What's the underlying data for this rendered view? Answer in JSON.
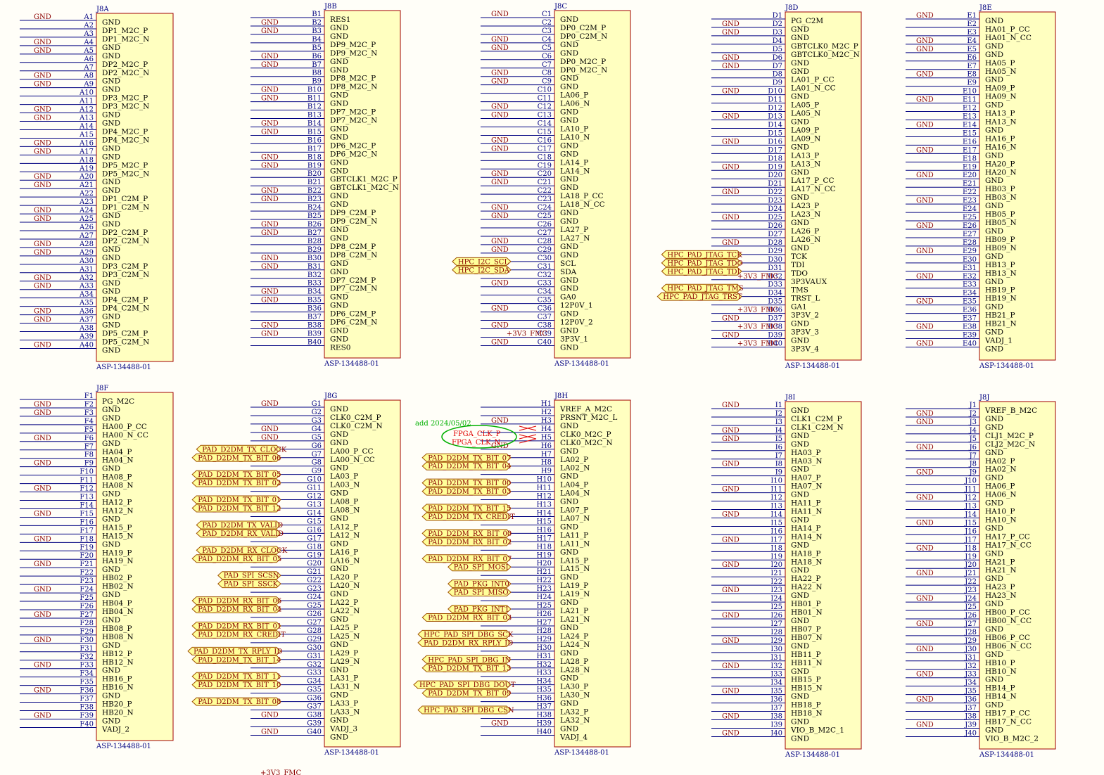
{
  "colors": {
    "wire": "#000080",
    "body_fill": "#ffffc0",
    "body_stroke": "#a00000",
    "gnd_text": "#8b0000",
    "port_fill": "#ffff99",
    "port_stroke": "#a05000",
    "note": "#00b000",
    "clk": "#e00000"
  },
  "gnd_label": "GND",
  "note": "add 2024/05/02",
  "bottom_label": "+3V3_FMC",
  "clk_labels": [
    "FPGA_CLK_P",
    "FPGA_CLK_N"
  ],
  "part": "ASP-134488-01",
  "top": [
    {
      "ref": "J8A",
      "prefix": "A",
      "gnd": [
        1,
        4,
        5,
        8,
        9,
        12,
        13,
        16,
        17,
        20,
        21,
        24,
        25,
        28,
        29,
        32,
        33,
        36,
        37,
        40
      ],
      "ext": {},
      "sigs": [
        "GND",
        "DP1_M2C_P",
        "DP1_M2C_N",
        "GND",
        "GND",
        "DP2_M2C_P",
        "DP2_M2C_N",
        "GND",
        "GND",
        "DP3_M2C_P",
        "DP3_M2C_N",
        "GND",
        "GND",
        "DP4_M2C_P",
        "DP4_M2C_N",
        "GND",
        "GND",
        "DP5_M2C_P",
        "DP5_M2C_N",
        "GND",
        "GND",
        "DP1_C2M_P",
        "DP1_C2M_N",
        "GND",
        "GND",
        "DP2_C2M_P",
        "DP2_C2M_N",
        "GND",
        "GND",
        "DP3_C2M_P",
        "DP3_C2M_N",
        "GND",
        "GND",
        "DP4_C2M_P",
        "DP4_C2M_N",
        "GND",
        "GND",
        "DP5_C2M_P",
        "DP5_C2M_N",
        "GND"
      ]
    },
    {
      "ref": "J8B",
      "prefix": "B",
      "gnd": [
        2,
        3,
        6,
        7,
        10,
        11,
        14,
        15,
        18,
        19,
        22,
        23,
        26,
        27,
        30,
        31,
        34,
        35,
        38,
        39
      ],
      "ext": {},
      "sigs": [
        "RES1",
        "GND",
        "GND",
        "DP9_M2C_P",
        "DP9_M2C_N",
        "GND",
        "GND",
        "DP8_M2C_P",
        "DP8_M2C_N",
        "GND",
        "GND",
        "DP7_M2C_P",
        "DP7_M2C_N",
        "GND",
        "GND",
        "DP6_M2C_P",
        "DP6_M2C_N",
        "GND",
        "GND",
        "GBTCLK1_M2C_P",
        "GBTCLK1_M2C_N",
        "GND",
        "GND",
        "DP9_C2M_P",
        "DP9_C2M_N",
        "GND",
        "GND",
        "DP8_C2M_P",
        "DP8_C2M_N",
        "GND",
        "GND",
        "DP7_C2M_P",
        "DP7_C2M_N",
        "GND",
        "GND",
        "DP6_C2M_P",
        "DP6_C2M_N",
        "GND",
        "GND",
        "RES0"
      ]
    },
    {
      "ref": "J8C",
      "prefix": "C",
      "gnd": [
        1,
        4,
        5,
        8,
        9,
        12,
        13,
        16,
        17,
        20,
        21,
        24,
        25,
        28,
        29,
        33,
        36,
        38,
        40
      ],
      "ext": {
        "30": "HPC_I2C_SCL",
        "31": "HPC_I2C_SDA",
        "39": "+3V3_FMC"
      },
      "sigs": [
        "GND",
        "DP0_C2M_P",
        "DP0_C2M_N",
        "GND",
        "GND",
        "DP0_M2C_P",
        "DP0_M2C_N",
        "GND",
        "GND",
        "LA06_P",
        "LA06_N",
        "GND",
        "GND",
        "LA10_P",
        "LA10_N",
        "GND",
        "GND",
        "LA14_P",
        "LA14_N",
        "GND",
        "GND",
        "LA18_P_CC",
        "LA18_N_CC",
        "GND",
        "GND",
        "LA27_P",
        "LA27_N",
        "GND",
        "GND",
        "SCL",
        "SDA",
        "GND",
        "GND",
        "GA0",
        "12P0V_1",
        "GND",
        "12P0V_2",
        "GND",
        "3P3V_1",
        "GND"
      ]
    },
    {
      "ref": "J8D",
      "prefix": "D",
      "gnd": [
        2,
        3,
        6,
        7,
        10,
        13,
        16,
        19,
        22,
        25,
        28,
        37,
        39
      ],
      "ext": {
        "29": "HPC_PAD_JTAG_TCK",
        "30": "HPC_PAD_JTAG_TDO",
        "31": "HPC_PAD_JTAG_TDI",
        "32": "+3V3_FMC",
        "33": "HPC_PAD_JTAG_TMS",
        "34": "HPC_PAD_JTAG_TRST",
        "36": "+3V3_FMC",
        "38": "+3V3_FMC",
        "40": "+3V3_FMC"
      },
      "sigs": [
        "PG_C2M",
        "GND",
        "GND",
        "GBTCLK0_M2C_P",
        "GBTCLK0_M2C_N",
        "GND",
        "GND",
        "LA01_P_CC",
        "LA01_N_CC",
        "GND",
        "LA05_P",
        "LA05_N",
        "GND",
        "LA09_P",
        "LA09_N",
        "GND",
        "LA13_P",
        "LA13_N",
        "GND",
        "LA17_P_CC",
        "LA17_N_CC",
        "GND",
        "LA23_P",
        "LA23_N",
        "GND",
        "LA26_P",
        "LA26_N",
        "GND",
        "TCK",
        "TDI",
        "TDO",
        "3P3VAUX",
        "TMS",
        "TRST_L",
        "GA1",
        "3P3V_2",
        "GND",
        "3P3V_3",
        "GND",
        "3P3V_4"
      ]
    },
    {
      "ref": "J8E",
      "prefix": "E",
      "gnd": [
        1,
        4,
        5,
        8,
        11,
        14,
        17,
        20,
        23,
        26,
        29,
        32,
        35,
        38,
        40
      ],
      "ext": {},
      "sigs": [
        "GND",
        "HA01_P_CC",
        "HA01_N_CC",
        "GND",
        "GND",
        "HA05_P",
        "HA05_N",
        "GND",
        "HA09_P",
        "HA09_N",
        "GND",
        "HA13_P",
        "HA13_N",
        "GND",
        "HA16_P",
        "HA16_N",
        "GND",
        "HA20_P",
        "HA20_N",
        "GND",
        "HB03_P",
        "HB03_N",
        "GND",
        "HB05_P",
        "HB05_N",
        "GND",
        "HB09_P",
        "HB09_N",
        "GND",
        "HB13_P",
        "HB13_N",
        "GND",
        "HB19_P",
        "HB19_N",
        "GND",
        "HB21_P",
        "HB21_N",
        "GND",
        "VADJ_1",
        "GND"
      ]
    }
  ],
  "bottom": [
    {
      "ref": "J8F",
      "prefix": "F",
      "gnd": [
        2,
        3,
        6,
        9,
        12,
        15,
        18,
        21,
        24,
        27,
        30,
        33,
        36,
        39
      ],
      "ext": {},
      "sigs": [
        "PG_M2C",
        "GND",
        "GND",
        "HA00_P_CC",
        "HA00_N_CC",
        "GND",
        "HA04_P",
        "HA04_N",
        "GND",
        "HA08_P",
        "HA08_N",
        "GND",
        "HA12_P",
        "HA12_N",
        "GND",
        "HA15_P",
        "HA15_N",
        "GND",
        "HA19_P",
        "HA19_N",
        "GND",
        "HB02_P",
        "HB02_N",
        "GND",
        "HB04_P",
        "HB04_N",
        "GND",
        "HB08_P",
        "HB08_N",
        "GND",
        "HB12_P",
        "HB12_N",
        "GND",
        "HB16_P",
        "HB16_N",
        "GND",
        "HB20_P",
        "HB20_N",
        "GND",
        "VADJ_2"
      ]
    },
    {
      "ref": "J8G",
      "prefix": "G",
      "gnd": [
        1,
        4,
        5,
        38,
        40
      ],
      "ext": {
        "6": "PAD_D2DM_TX_CLOCK",
        "7": "PAD_D2DM_TX_BIT_06",
        "9": "PAD_D2DM_TX_BIT_05",
        "10": "PAD_D2DM_TX_BIT_02",
        "12": "PAD_D2DM_TX_BIT_01",
        "13": "PAD_D2DM_TX_BIT_12",
        "15": "PAD_D2DM_TX_VALID",
        "16": "PAD_D2DM_RX_VALID",
        "18": "PAD_D2DM_RX_CLOCK",
        "19": "PAD_D2DM_RX_BIT_05",
        "21": "PAD_SPI_SCSN",
        "22": "PAD_SPI_SSCK",
        "24": "PAD_D2DM_RX_BIT_06",
        "25": "PAD_D2DM_RX_BIT_04",
        "27": "PAD_D2DM_RX_BIT_01",
        "28": "PAD_D2DM_RX_CREDIT",
        "30": "PAD_D2DM_TX_RPLY_ID",
        "31": "PAD_D2DM_TX_BIT_14",
        "33": "PAD_D2DM_TX_BIT_11",
        "34": "PAD_D2DM_TX_BIT_10",
        "36": "PAD_D2DM_TX_BIT_08"
      },
      "sigs": [
        "GND",
        "CLK0_C2M_P",
        "CLK0_C2M_N",
        "GND",
        "GND",
        "LA00_P_CC",
        "LA00_N_CC",
        "GND",
        "LA03_P",
        "LA03_N",
        "GND",
        "LA08_P",
        "LA08_N",
        "GND",
        "LA12_P",
        "LA12_N",
        "GND",
        "LA16_P",
        "LA16_N",
        "GND",
        "LA20_P",
        "LA20_N",
        "GND",
        "LA22_P",
        "LA22_N",
        "GND",
        "LA25_P",
        "LA25_N",
        "GND",
        "LA29_P",
        "LA29_N",
        "GND",
        "LA31_P",
        "LA31_N",
        "GND",
        "LA33_P",
        "LA33_N",
        "GND",
        "VADJ_3",
        "GND"
      ]
    },
    {
      "ref": "J8H",
      "prefix": "H",
      "gnd": [
        3,
        6,
        39
      ],
      "ext": {
        "7": "PAD_D2DM_TX_BIT_07",
        "8": "PAD_D2DM_TX_BIT_04",
        "10": "PAD_D2DM_TX_BIT_00",
        "11": "PAD_D2DM_TX_BIT_03",
        "13": "PAD_D2DM_TX_BIT_15",
        "14": "PAD_D2DM_TX_CREDIT",
        "16": "PAD_D2DM_RX_BIT_00",
        "17": "PAD_D2DM_RX_BIT_02",
        "19": "PAD_D2DM_RX_BIT_07",
        "20": "PAD_SPI_MOSI",
        "22": "PAD_PKG_INT0",
        "23": "PAD_SPI_MISO",
        "25": "PAD_PKG_INT1",
        "26": "PAD_D2DM_RX_BIT_03",
        "28": "HPC_PAD_SPI_DBG_SCK",
        "29": "PAD_D2DM_RX_RPLY_ID",
        "31": "HPC_PAD_SPI_DBG_IN",
        "32": "PAD_D2DM_TX_BIT_13",
        "34": "HPC_PAD_SPI_DBG_DOUT",
        "35": "PAD_D2DM_TX_BIT_09",
        "37": "HPC_PAD_SPI_DBG_CSN"
      },
      "sigs": [
        "VREF_A_M2C",
        "PRSNT_M2C_L",
        "GND",
        "CLK0_M2C_P",
        "CLK0_M2C_N",
        "GND",
        "LA02_P",
        "LA02_N",
        "GND",
        "LA04_P",
        "LA04_N",
        "GND",
        "LA07_P",
        "LA07_N",
        "GND",
        "LA11_P",
        "LA11_N",
        "GND",
        "LA15_P",
        "LA15_N",
        "GND",
        "LA19_P",
        "LA19_N",
        "GND",
        "LA21_P",
        "LA21_N",
        "GND",
        "LA24_P",
        "LA24_N",
        "GND",
        "LA28_P",
        "LA28_N",
        "GND",
        "LA30_P",
        "LA30_N",
        "GND",
        "LA32_P",
        "LA32_N",
        "GND",
        "VADJ_4"
      ]
    },
    {
      "ref": "J8I",
      "prefix": "I",
      "gnd": [
        1,
        4,
        5,
        8,
        11,
        14,
        17,
        20,
        23,
        26,
        29,
        32,
        35,
        38,
        40
      ],
      "ext": {},
      "sigs": [
        "GND",
        "CLK1_C2M_P",
        "CLK1_C2M_N",
        "GND",
        "GND",
        "HA03_P",
        "HA03_N",
        "GND",
        "HA07_P",
        "HA07_N",
        "GND",
        "HA11_P",
        "HA11_N",
        "GND",
        "HA14_P",
        "HA14_N",
        "GND",
        "HA18_P",
        "HA18_N",
        "GND",
        "HA22_P",
        "HA22_N",
        "GND",
        "HB01_P",
        "HB01_N",
        "GND",
        "HB07_P",
        "HB07_N",
        "GND",
        "HB11_P",
        "HB11_N",
        "GND",
        "HB15_P",
        "HB15_N",
        "GND",
        "HB18_P",
        "HB18_N",
        "GND",
        "VIO_B_M2C_1",
        "GND"
      ]
    },
    {
      "ref": "J8J",
      "prefix": "J",
      "gnd": [
        2,
        3,
        6,
        9,
        12,
        15,
        18,
        21,
        24,
        27,
        30,
        33,
        36,
        39
      ],
      "ext": {},
      "sigs": [
        "VREF_B_M2C",
        "GND",
        "GND",
        "CLJ1_M2C_P",
        "CLJ2_M2C_N",
        "GND",
        "HA02_P",
        "HA02_N",
        "GND",
        "HA06_P",
        "HA06_N",
        "GND",
        "HA10_P",
        "HA10_N",
        "GND",
        "HA17_P_CC",
        "HA17_N_CC",
        "GND",
        "HA21_P",
        "HA21_N",
        "GND",
        "HA23_P",
        "HA23_N",
        "GND",
        "HB00_P_CC",
        "HB00_N_CC",
        "GND",
        "HB06_P_CC",
        "HB06_N_CC",
        "GND",
        "HB10_P",
        "HB10_N",
        "GND",
        "HB14_P",
        "HB14_N",
        "GND",
        "HB17_P_CC",
        "HB17_N_CC",
        "GND",
        "VIO_B_M2C_2"
      ]
    }
  ]
}
